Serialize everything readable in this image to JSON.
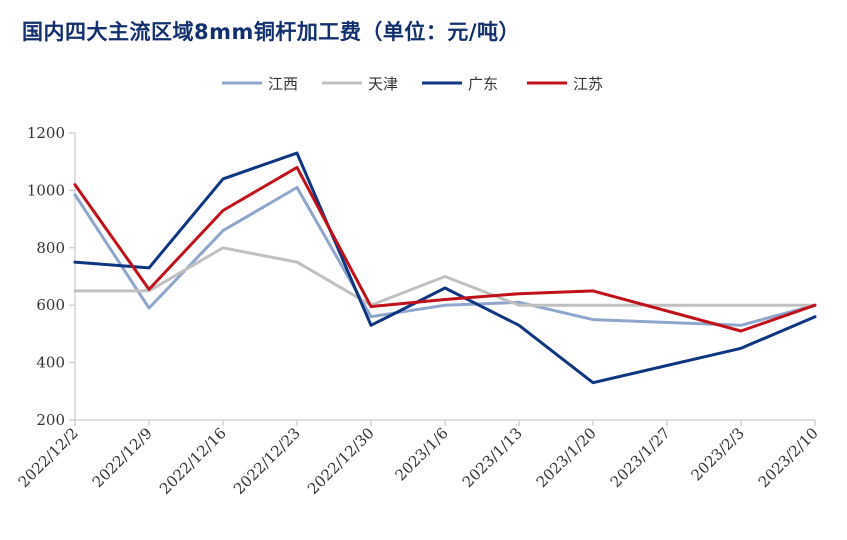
{
  "chart_data": {
    "type": "line",
    "title": "国内四大主流区域8mm铜杆加工费（单位：元/吨）",
    "xlabel": "",
    "ylabel": "",
    "ylim": [
      200,
      1200
    ],
    "yticks": [
      200,
      400,
      600,
      800,
      1000,
      1200
    ],
    "categories": [
      "2022/12/2",
      "2022/12/9",
      "2022/12/16",
      "2022/12/23",
      "2022/12/30",
      "2023/1/6",
      "2023/1/13",
      "2023/1/20",
      "2023/1/27",
      "2023/2/3",
      "2023/2/10"
    ],
    "grid": false,
    "legend_position": "top-center",
    "series": [
      {
        "name": "江西",
        "color": "#8ea5cc",
        "values": [
          985,
          590,
          860,
          1010,
          560,
          600,
          610,
          550,
          null,
          530,
          600
        ]
      },
      {
        "name": "天津",
        "color": "#c0c0c0",
        "values": [
          650,
          650,
          800,
          750,
          600,
          700,
          600,
          600,
          null,
          600,
          600
        ]
      },
      {
        "name": "广东",
        "color": "#0d3580",
        "values": [
          750,
          730,
          1040,
          1130,
          530,
          660,
          530,
          330,
          null,
          450,
          560
        ]
      },
      {
        "name": "江苏",
        "color": "#c0101a",
        "values": [
          1020,
          655,
          930,
          1080,
          595,
          620,
          640,
          650,
          null,
          510,
          600
        ]
      }
    ]
  }
}
